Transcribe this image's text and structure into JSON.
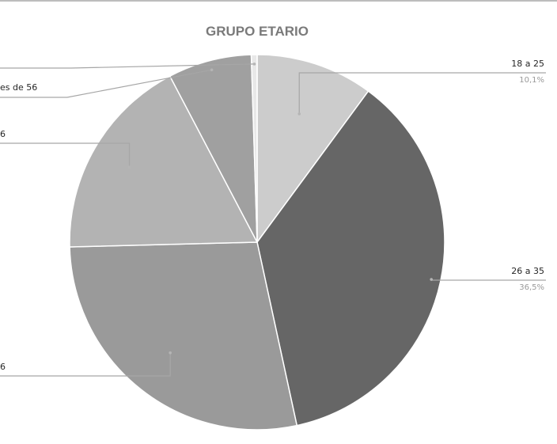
{
  "chart_data": {
    "type": "pie",
    "title": "GRUPO ETARIO",
    "slices": [
      {
        "label": "18 a 25",
        "pct_label": "10,1%",
        "value": 10.1,
        "color": "#cccccc",
        "show_pct": true
      },
      {
        "label": "26 a 35",
        "pct_label": "36,5%",
        "value": 36.5,
        "color": "#666666",
        "show_pct": true
      },
      {
        "label": "6",
        "pct_label": "",
        "value": 28.0,
        "color": "#9a9a9a",
        "show_pct": false
      },
      {
        "label": "6",
        "pct_label": "",
        "value": 17.7,
        "color": "#b3b3b3",
        "show_pct": false
      },
      {
        "label": "es de 56",
        "pct_label": "",
        "value": 7.2,
        "color": "#a0a0a0",
        "show_pct": false
      },
      {
        "label": "",
        "pct_label": "",
        "value": 0.5,
        "color": "#e8e8e8",
        "show_pct": false
      }
    ]
  }
}
